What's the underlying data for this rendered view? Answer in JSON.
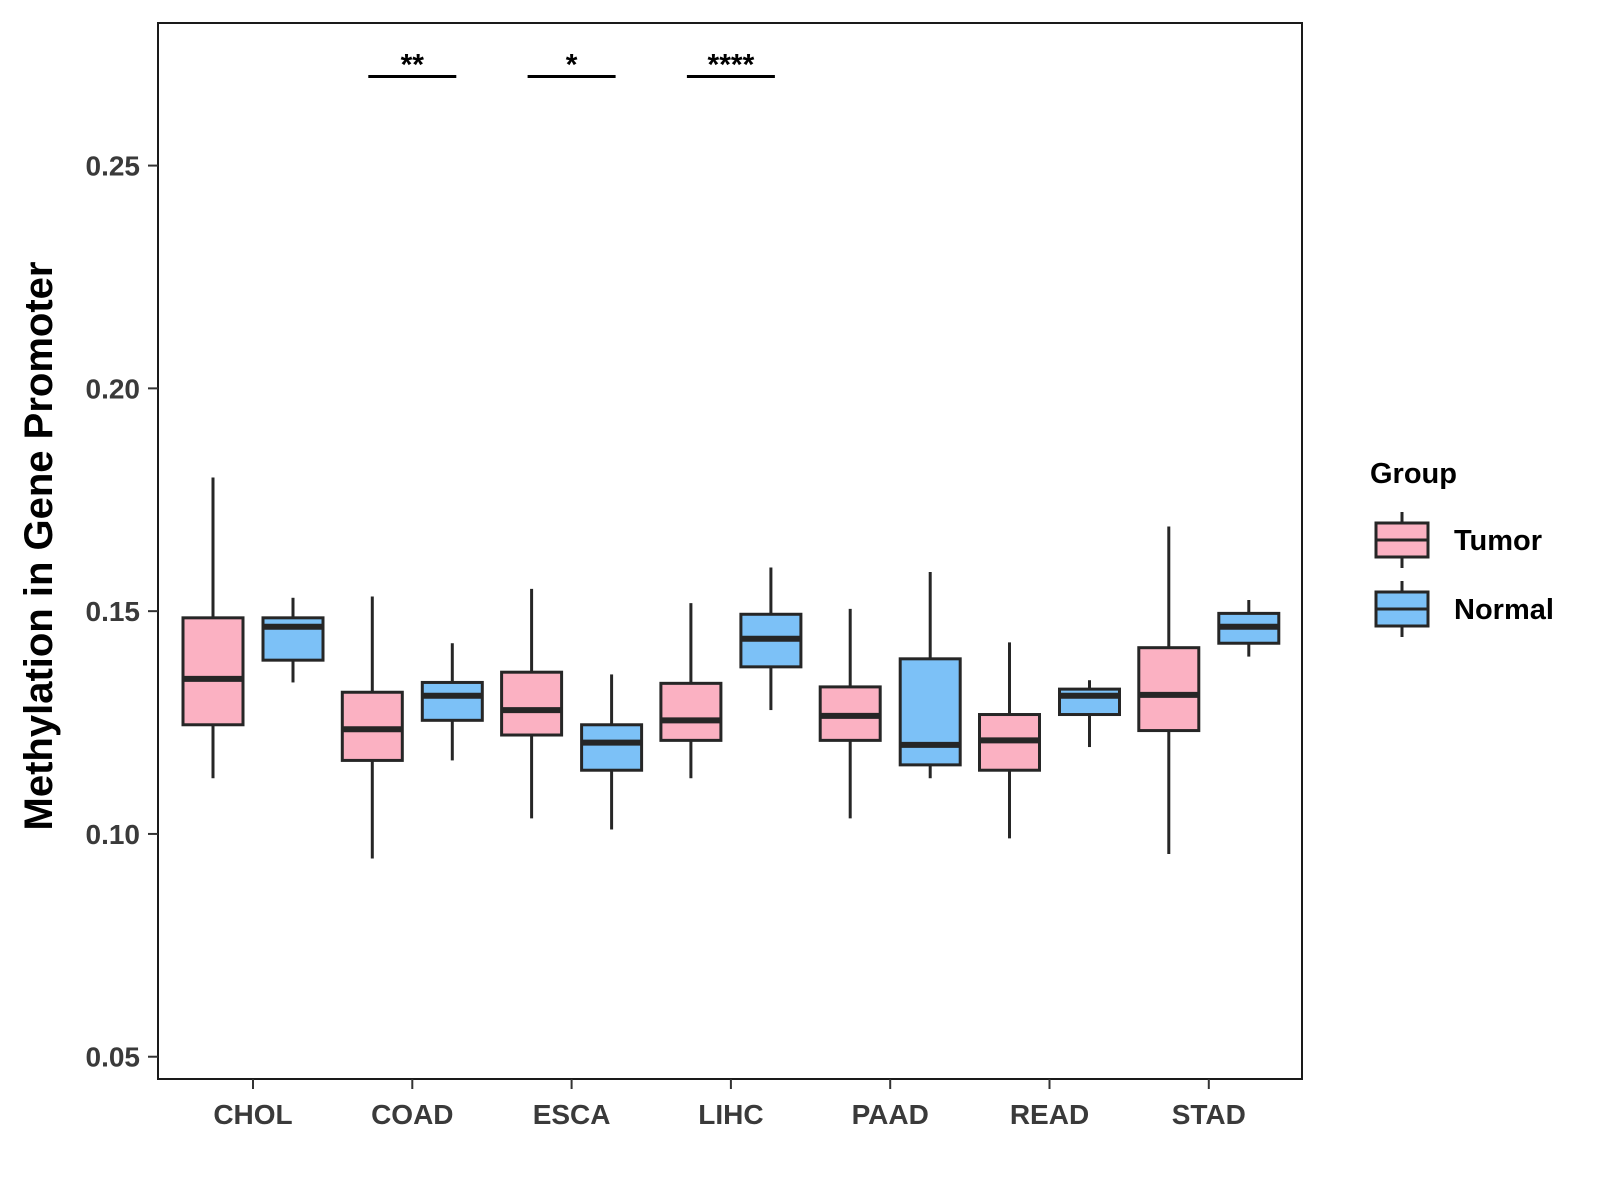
{
  "chart_data": {
    "type": "boxplot",
    "title": "",
    "xlabel": "",
    "ylabel": "Methylation in Gene Promoter",
    "ylim": [
      0.045,
      0.282
    ],
    "yticks": [
      0.05,
      0.1,
      0.15,
      0.2,
      0.25
    ],
    "ytick_labels": [
      "0.05",
      "0.10",
      "0.15",
      "0.20",
      "0.25"
    ],
    "categories": [
      "CHOL",
      "COAD",
      "ESCA",
      "LIHC",
      "PAAD",
      "READ",
      "STAD"
    ],
    "legend": {
      "title": "Group",
      "position": "right",
      "entries": [
        {
          "name": "Tumor",
          "color": "#FBB1C2"
        },
        {
          "name": "Normal",
          "color": "#7CC1F7"
        }
      ]
    },
    "series": [
      {
        "name": "Tumor",
        "color": "#FBB1C2",
        "boxes": [
          {
            "low": 0.1125,
            "q1": 0.1245,
            "median": 0.1348,
            "q3": 0.1485,
            "high": 0.18
          },
          {
            "low": 0.0945,
            "q1": 0.1165,
            "median": 0.1235,
            "q3": 0.1318,
            "high": 0.1533
          },
          {
            "low": 0.1035,
            "q1": 0.1222,
            "median": 0.1278,
            "q3": 0.1363,
            "high": 0.155
          },
          {
            "low": 0.1125,
            "q1": 0.121,
            "median": 0.1255,
            "q3": 0.1338,
            "high": 0.1518
          },
          {
            "low": 0.1035,
            "q1": 0.121,
            "median": 0.1265,
            "q3": 0.133,
            "high": 0.1505
          },
          {
            "low": 0.099,
            "q1": 0.1143,
            "median": 0.121,
            "q3": 0.1268,
            "high": 0.143
          },
          {
            "low": 0.0955,
            "q1": 0.1232,
            "median": 0.1312,
            "q3": 0.1418,
            "high": 0.169
          }
        ]
      },
      {
        "name": "Normal",
        "color": "#7CC1F7",
        "boxes": [
          {
            "low": 0.134,
            "q1": 0.139,
            "median": 0.1465,
            "q3": 0.1485,
            "high": 0.153
          },
          {
            "low": 0.1165,
            "q1": 0.1255,
            "median": 0.131,
            "q3": 0.134,
            "high": 0.1428
          },
          {
            "low": 0.101,
            "q1": 0.1143,
            "median": 0.1205,
            "q3": 0.1245,
            "high": 0.1358
          },
          {
            "low": 0.1278,
            "q1": 0.1375,
            "median": 0.1438,
            "q3": 0.1493,
            "high": 0.1598
          },
          {
            "low": 0.1125,
            "q1": 0.1155,
            "median": 0.12,
            "q3": 0.1393,
            "high": 0.1588
          },
          {
            "low": 0.1195,
            "q1": 0.1268,
            "median": 0.131,
            "q3": 0.1325,
            "high": 0.1345
          },
          {
            "low": 0.1398,
            "q1": 0.1428,
            "median": 0.1465,
            "q3": 0.1495,
            "high": 0.1525
          }
        ]
      }
    ],
    "annotations": [
      {
        "category": "COAD",
        "label": "**",
        "y": 0.27
      },
      {
        "category": "ESCA",
        "label": "*",
        "y": 0.27
      },
      {
        "category": "LIHC",
        "label": "****",
        "y": 0.27
      }
    ]
  }
}
